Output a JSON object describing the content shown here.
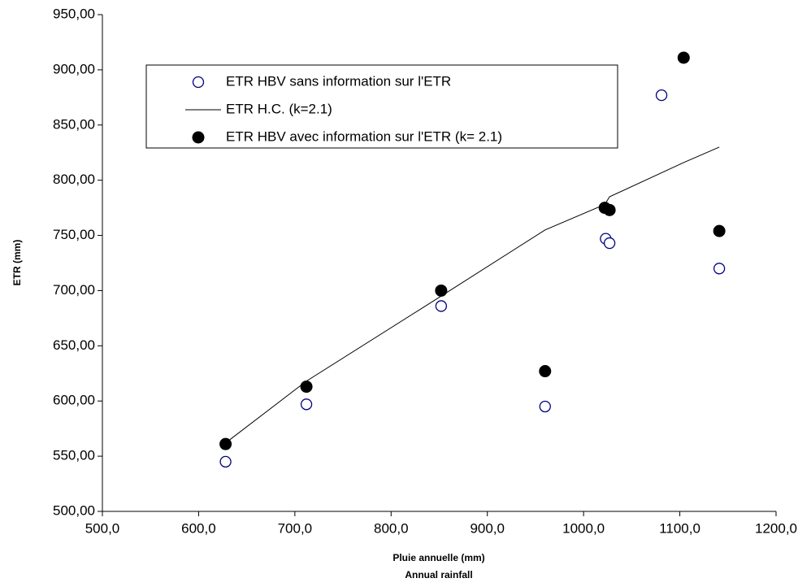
{
  "chart_data": {
    "type": "scatter",
    "ylabel": "ETR (mm)",
    "xlabel": [
      "Pluie annuelle (mm)",
      "Annual rainfall"
    ],
    "xlim": [
      500,
      1200
    ],
    "xticks": [
      {
        "value": 500,
        "label": "500,0"
      },
      {
        "value": 600,
        "label": "600,0"
      },
      {
        "value": 700,
        "label": "700,0"
      },
      {
        "value": 800,
        "label": "800,0"
      },
      {
        "value": 900,
        "label": "900,0"
      },
      {
        "value": 1000,
        "label": "1000,0"
      },
      {
        "value": 1100,
        "label": "1100,0"
      },
      {
        "value": 1200,
        "label": "1200,0"
      }
    ],
    "ylim": [
      500,
      950
    ],
    "yticks": [
      {
        "value": 500,
        "label": "500,00"
      },
      {
        "value": 550,
        "label": "550,00"
      },
      {
        "value": 600,
        "label": "600,00"
      },
      {
        "value": 650,
        "label": "650,00"
      },
      {
        "value": 700,
        "label": "700,00"
      },
      {
        "value": 750,
        "label": "750,00"
      },
      {
        "value": 800,
        "label": "800,00"
      },
      {
        "value": 850,
        "label": "850,00"
      },
      {
        "value": 900,
        "label": "900,00"
      },
      {
        "value": 950,
        "label": "950,00"
      }
    ],
    "grid": false,
    "series": [
      {
        "name": "ETR HBV sans information sur l'ETR",
        "marker": "open-circle",
        "color": "#000080",
        "x": [
          628,
          712,
          852,
          960,
          1023,
          1027,
          1081,
          1141
        ],
        "values": [
          545,
          597,
          686,
          595,
          747,
          743,
          877,
          720
        ]
      },
      {
        "name": "ETR H.C. (k=2.1)",
        "marker": "line",
        "color": "#000000",
        "x": [
          628,
          712,
          852,
          960,
          1022,
          1027,
          1104,
          1141
        ],
        "values": [
          562,
          618,
          695,
          755,
          778,
          785,
          816,
          830
        ]
      },
      {
        "name": "ETR HBV avec information sur l'ETR (k= 2.1)",
        "marker": "filled-circle",
        "color": "#000000",
        "x": [
          628,
          712,
          852,
          960,
          1022,
          1027,
          1104,
          1141
        ],
        "values": [
          561,
          613,
          700,
          627,
          775,
          773,
          911,
          754
        ]
      }
    ]
  }
}
